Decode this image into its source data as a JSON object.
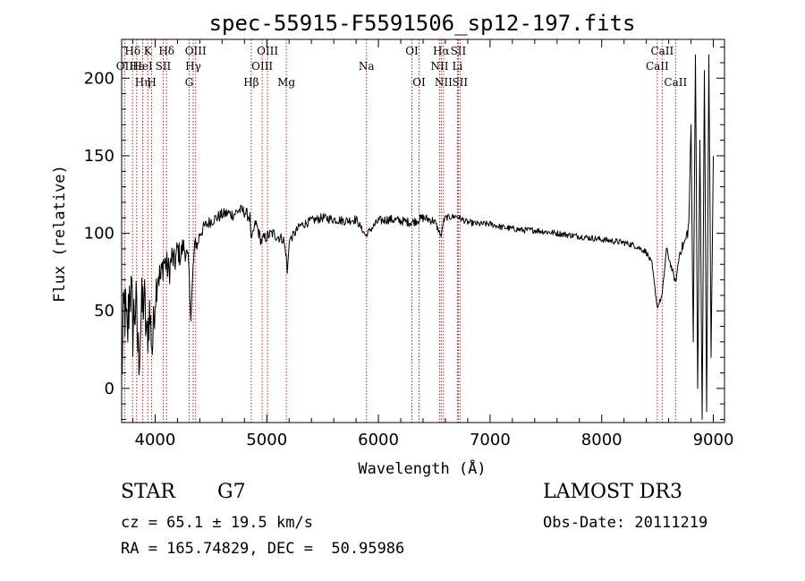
{
  "chart_data": {
    "type": "line",
    "title": "spec-55915-F5591506_sp12-197.fits",
    "xlabel": "Wavelength (Å)",
    "ylabel": "Flux (relative)",
    "xlim": [
      3700,
      9100
    ],
    "ylim": [
      -22,
      225
    ],
    "xticks": [
      4000,
      5000,
      6000,
      7000,
      8000,
      9000
    ],
    "xtick_labels": [
      "4000",
      "5000",
      "6000",
      "7000",
      "8000",
      "9000"
    ],
    "yticks": [
      0,
      50,
      100,
      150,
      200
    ],
    "ytick_labels": [
      "0",
      "50",
      "100",
      "150",
      "200"
    ],
    "series": [
      {
        "name": "spectrum",
        "color": "#000000",
        "x": [
          3700,
          3725,
          3750,
          3775,
          3800,
          3825,
          3850,
          3875,
          3900,
          3925,
          3950,
          3975,
          4000,
          4025,
          4050,
          4075,
          4100,
          4125,
          4150,
          4175,
          4200,
          4225,
          4250,
          4275,
          4300,
          4320,
          4340,
          4360,
          4380,
          4400,
          4450,
          4500,
          4550,
          4600,
          4650,
          4700,
          4750,
          4800,
          4850,
          4861,
          4900,
          4950,
          5000,
          5050,
          5100,
          5150,
          5175,
          5184,
          5200,
          5250,
          5300,
          5400,
          5500,
          5600,
          5700,
          5800,
          5890,
          5900,
          6000,
          6100,
          6200,
          6300,
          6400,
          6500,
          6563,
          6580,
          6600,
          6700,
          6800,
          6900,
          7000,
          7100,
          7200,
          7300,
          7400,
          7500,
          7600,
          7700,
          7800,
          7900,
          8000,
          8100,
          8200,
          8300,
          8400,
          8450,
          8498,
          8542,
          8580,
          8662,
          8700,
          8750,
          8780,
          8800,
          8820,
          8840,
          8860,
          8880,
          8900,
          8920,
          8940,
          8960,
          8980,
          9000
        ],
        "y": [
          10,
          55,
          30,
          70,
          40,
          55,
          20,
          45,
          60,
          30,
          50,
          25,
          60,
          75,
          70,
          82,
          80,
          75,
          85,
          80,
          90,
          85,
          92,
          88,
          80,
          45,
          78,
          95,
          92,
          100,
          105,
          108,
          110,
          112,
          113,
          112,
          115,
          114,
          110,
          95,
          107,
          95,
          98,
          100,
          98,
          96,
          85,
          74,
          95,
          100,
          105,
          108,
          110,
          109,
          108,
          109,
          98,
          100,
          108,
          109,
          108,
          107,
          110,
          108,
          98,
          107,
          110,
          111,
          107,
          106,
          106,
          104,
          103,
          102,
          102,
          101,
          100,
          99,
          98,
          97,
          96,
          95,
          94,
          92,
          88,
          80,
          52,
          60,
          90,
          68,
          88,
          95,
          105,
          170,
          30,
          215,
          0,
          160,
          -20,
          205,
          -15,
          215,
          20,
          150
        ],
        "noise_amplitude": [
          25,
          25,
          25,
          25,
          25,
          25,
          25,
          25,
          22,
          20,
          18,
          16,
          15,
          12,
          12,
          10,
          10,
          10,
          9,
          9,
          8,
          8,
          7,
          7,
          6,
          3,
          5,
          5,
          5,
          5,
          4,
          4,
          4,
          4,
          4,
          4,
          4,
          4,
          4,
          2,
          4,
          4,
          4,
          4,
          4,
          3,
          2,
          1,
          3,
          3,
          3,
          3,
          3,
          3,
          3,
          3,
          1,
          2,
          3,
          3,
          3,
          3,
          3,
          3,
          1,
          2,
          2,
          2,
          2,
          2,
          2,
          2,
          2,
          2,
          2,
          2,
          2,
          2,
          2,
          2,
          2,
          2,
          2,
          2,
          2,
          2,
          1,
          2,
          2,
          2,
          3,
          4,
          6,
          0,
          0,
          0,
          0,
          0,
          0,
          0,
          0,
          0,
          0,
          0
        ]
      }
    ],
    "line_markers": [
      {
        "label": "Hδ",
        "wavelength": 3798,
        "row": 1
      },
      {
        "label": "OII",
        "wavelength": 3727,
        "row": 2
      },
      {
        "label": "Hε",
        "wavelength": 3835,
        "row": 2
      },
      {
        "label": "HeI",
        "wavelength": 3889,
        "row": 2
      },
      {
        "label": "Hη",
        "wavelength": 3889,
        "row": 3
      },
      {
        "label": "K",
        "wavelength": 3934,
        "row": 1
      },
      {
        "label": "H",
        "wavelength": 3969,
        "row": 3
      },
      {
        "label": "SII",
        "wavelength": 4072,
        "row": 2
      },
      {
        "label": "Hδ",
        "wavelength": 4102,
        "row": 1
      },
      {
        "label": "OIII",
        "wavelength": 4363,
        "row": 1
      },
      {
        "label": "Hγ",
        "wavelength": 4341,
        "row": 2
      },
      {
        "label": "G",
        "wavelength": 4305,
        "row": 3
      },
      {
        "label": "Hβ",
        "wavelength": 4861,
        "row": 3
      },
      {
        "label": "OIII",
        "wavelength": 5007,
        "row": 1
      },
      {
        "label": "OIII",
        "wavelength": 4959,
        "row": 2
      },
      {
        "label": "Mg",
        "wavelength": 5175,
        "row": 3
      },
      {
        "label": "Na",
        "wavelength": 5893,
        "row": 2
      },
      {
        "label": "OI",
        "wavelength": 6300,
        "row": 1
      },
      {
        "label": "OI",
        "wavelength": 6364,
        "row": 3
      },
      {
        "label": "Hα",
        "wavelength": 6563,
        "row": 1
      },
      {
        "label": "NII",
        "wavelength": 6548,
        "row": 2
      },
      {
        "label": "NII",
        "wavelength": 6583,
        "row": 3
      },
      {
        "label": "SII",
        "wavelength": 6716,
        "row": 1
      },
      {
        "label": "Li",
        "wavelength": 6708,
        "row": 2
      },
      {
        "label": "SII",
        "wavelength": 6731,
        "row": 3
      },
      {
        "label": "CaII",
        "wavelength": 8542,
        "row": 1
      },
      {
        "label": "CaII",
        "wavelength": 8498,
        "row": 2
      },
      {
        "label": "CaII",
        "wavelength": 8662,
        "row": 3
      }
    ]
  },
  "info": {
    "class_label": "STAR",
    "subclass": "G7",
    "survey": "LAMOST DR3",
    "cz": "cz = 65.1 ± 19.5 km/s",
    "obs_date": "Obs-Date: 20111219",
    "coords": "RA = 165.74829, DEC =  50.95986"
  },
  "colors": {
    "spectrum": "#000000",
    "marker_line": "#b22222",
    "axis": "#000000"
  }
}
